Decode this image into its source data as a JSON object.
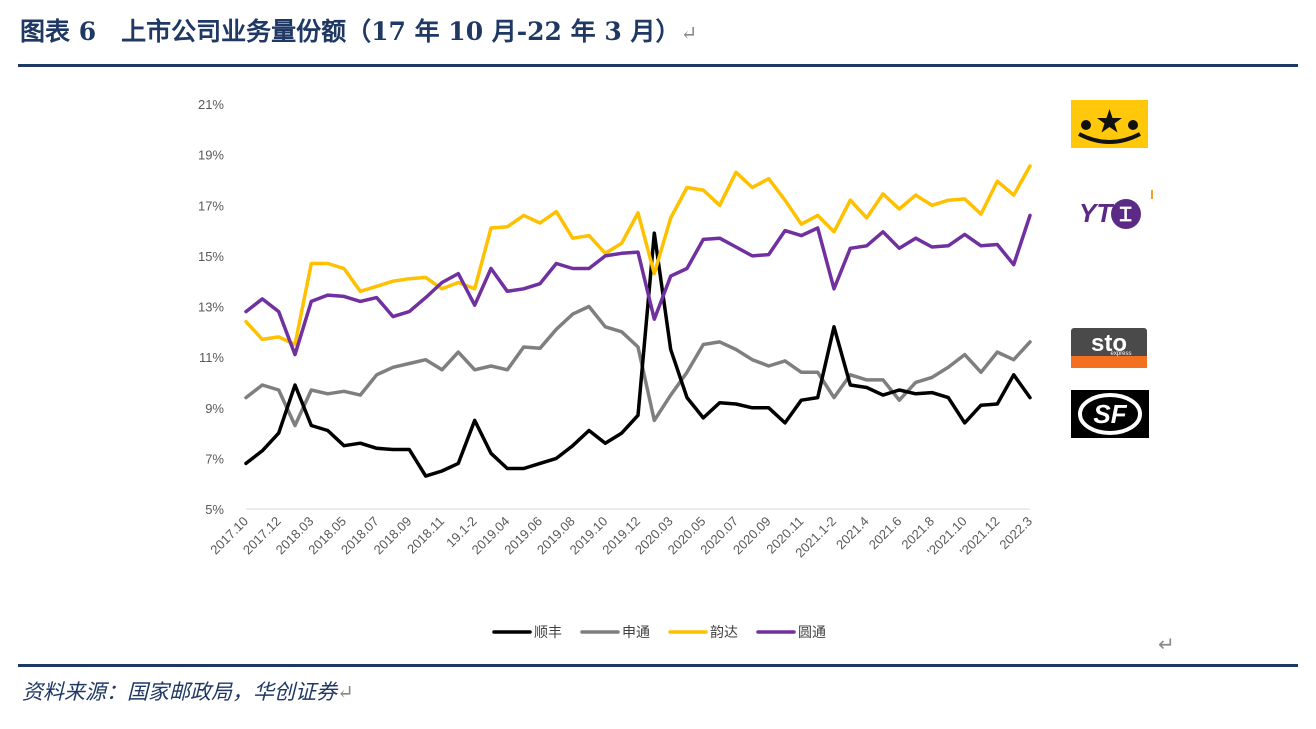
{
  "title": "图表 6　上市公司业务量份额（17 年 10 月-22 年 3 月）",
  "return_mark": "↵",
  "source": "资料来源：国家邮政局，华创证券",
  "logos": {
    "yunda": "韵达",
    "yto": "YTO",
    "sto": {
      "main": "sto",
      "sub": "express"
    },
    "sf": "SF"
  },
  "colors": {
    "sf": "#000000",
    "sto": "#7f7f7f",
    "yunda": "#ffc000",
    "yto": "#7030a0",
    "title": "#1f3864"
  },
  "chart_data": {
    "type": "line",
    "title": "",
    "xlabel": "",
    "ylabel": "",
    "ylim": [
      5,
      21
    ],
    "yticks": [
      "5%",
      "7%",
      "9%",
      "11%",
      "13%",
      "15%",
      "17%",
      "19%",
      "21%"
    ],
    "grid": false,
    "legend_position": "bottom",
    "x_tick_labels": [
      "2017.10",
      "2017.12",
      "2018.03",
      "2018.05",
      "2018.07",
      "2018.09",
      "2018.11",
      "19.1-2",
      "2019.04",
      "2019.06",
      "2019.08",
      "2019.10",
      "2019.12",
      "2020.03",
      "2020.05",
      "2020.07",
      "2020.09",
      "2020.11",
      "2021.1-2",
      "2021.4",
      "2021.6",
      "2021.8",
      "'2021.10",
      "'2021.12",
      "2022.3"
    ],
    "series": [
      {
        "name": "顺丰",
        "color": "#000000",
        "values": [
          6.8,
          7.3,
          8.0,
          9.9,
          8.3,
          8.1,
          7.5,
          7.6,
          7.4,
          7.35,
          7.35,
          6.3,
          6.5,
          6.8,
          8.5,
          7.2,
          6.6,
          6.6,
          6.8,
          7.0,
          7.5,
          8.1,
          7.6,
          8.0,
          8.7,
          15.9,
          11.3,
          9.4,
          8.6,
          9.2,
          9.15,
          9.0,
          9.0,
          8.4,
          9.3,
          9.4,
          12.2,
          9.9,
          9.8,
          9.5,
          9.7,
          9.55,
          9.6,
          9.4,
          8.4,
          9.1,
          9.15,
          10.3,
          9.4
        ]
      },
      {
        "name": "申通",
        "color": "#7f7f7f",
        "values": [
          9.4,
          9.9,
          9.7,
          8.3,
          9.7,
          9.55,
          9.65,
          9.5,
          10.3,
          10.6,
          10.75,
          10.9,
          10.5,
          11.2,
          10.5,
          10.65,
          10.5,
          11.4,
          11.35,
          12.1,
          12.7,
          13.0,
          12.2,
          12.0,
          11.4,
          8.5,
          9.5,
          10.4,
          11.5,
          11.6,
          11.3,
          10.9,
          10.65,
          10.85,
          10.4,
          10.4,
          9.4,
          10.3,
          10.1,
          10.1,
          9.3,
          10.0,
          10.2,
          10.6,
          11.1,
          10.4,
          11.2,
          10.9,
          11.6
        ]
      },
      {
        "name": "韵达",
        "color": "#ffc000",
        "values": [
          12.4,
          11.7,
          11.8,
          11.5,
          14.7,
          14.7,
          14.5,
          13.6,
          13.8,
          14.0,
          14.1,
          14.15,
          13.7,
          13.95,
          13.7,
          16.1,
          16.15,
          16.6,
          16.3,
          16.75,
          15.7,
          15.8,
          15.1,
          15.5,
          16.7,
          14.3,
          16.5,
          17.7,
          17.6,
          17.0,
          18.3,
          17.7,
          18.05,
          17.2,
          16.25,
          16.6,
          15.95,
          17.2,
          16.5,
          17.45,
          16.85,
          17.4,
          17.0,
          17.2,
          17.25,
          16.65,
          17.95,
          17.4,
          18.55
        ]
      },
      {
        "name": "圆通",
        "color": "#7030a0",
        "values": [
          12.8,
          13.3,
          12.8,
          11.1,
          13.2,
          13.45,
          13.4,
          13.2,
          13.35,
          12.6,
          12.8,
          13.35,
          13.95,
          14.3,
          13.05,
          14.5,
          13.6,
          13.7,
          13.9,
          14.7,
          14.5,
          14.5,
          15.0,
          15.1,
          15.15,
          12.5,
          14.2,
          14.5,
          15.65,
          15.7,
          15.35,
          15.0,
          15.05,
          16.0,
          15.8,
          16.1,
          13.7,
          15.3,
          15.4,
          15.95,
          15.3,
          15.7,
          15.35,
          15.4,
          15.85,
          15.4,
          15.45,
          14.65,
          16.6
        ]
      }
    ]
  }
}
